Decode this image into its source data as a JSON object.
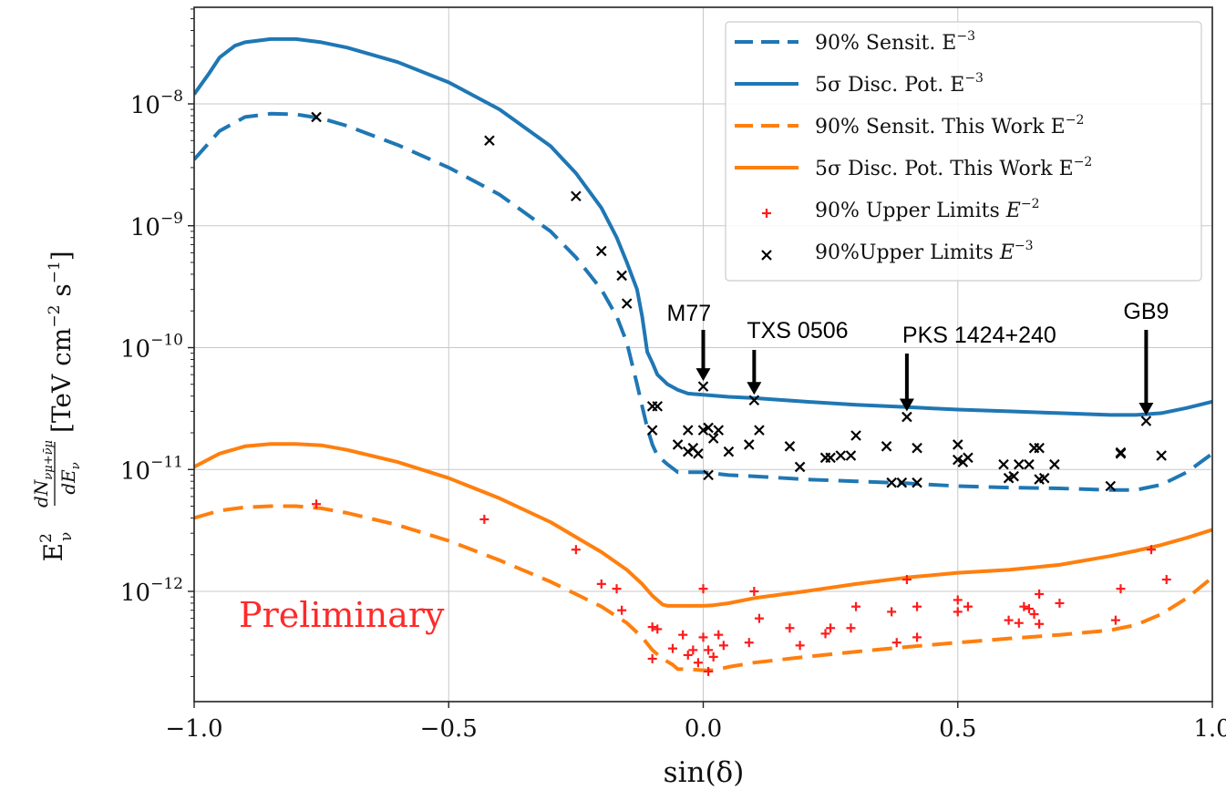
{
  "chart_data": {
    "type": "line",
    "title": "",
    "xlabel": "sin(δ)",
    "ylabel_main": "[TeV cm",
    "ylabel_parts": [
      "E",
      "2",
      "ν",
      "dN",
      "νμ+ν̄μ",
      "dE",
      "ν",
      "[TeV cm",
      "−2",
      " s",
      "−1",
      "]"
    ],
    "xlim": [
      -1.0,
      1.0
    ],
    "ylim": [
      2e-13,
      1e-07
    ],
    "yscale": "log",
    "grid": true,
    "legend_position": "top-right",
    "x_ticks": [
      "−1.0",
      "−0.5",
      "0.0",
      "0.5",
      "1.0"
    ],
    "x_tick_values": [
      -1.0,
      -0.5,
      0.0,
      0.5,
      1.0
    ],
    "y_tick_values": [
      1e-12,
      1e-11,
      1e-10,
      1e-09,
      1e-08
    ],
    "y_tick_bases": [
      "10",
      "10",
      "10",
      "10",
      "10"
    ],
    "y_tick_exps": [
      "−12",
      "−11",
      "−10",
      "−9",
      "−8"
    ],
    "watermark": "Preliminary",
    "colors": {
      "blue": "#1f77b4",
      "orange": "#ff7f0e",
      "red": "#ff1a1a",
      "black": "#000000"
    },
    "series": [
      {
        "name": "90% Sensit. E",
        "sup": "−3",
        "style": "dashed",
        "color": "#1f77b4",
        "x": [
          -1.0,
          -0.95,
          -0.9,
          -0.85,
          -0.8,
          -0.75,
          -0.7,
          -0.6,
          -0.5,
          -0.4,
          -0.3,
          -0.25,
          -0.2,
          -0.17,
          -0.15,
          -0.13,
          -0.12,
          -0.11,
          -0.1,
          -0.09,
          -0.07,
          -0.05,
          -0.03,
          -0.01,
          0.0,
          0.05,
          0.1,
          0.2,
          0.3,
          0.4,
          0.5,
          0.6,
          0.7,
          0.8,
          0.85,
          0.9,
          0.95,
          1.0
        ],
        "y": [
          3.5e-09,
          6e-09,
          7.8e-09,
          8.3e-09,
          8.2e-09,
          7.6e-09,
          6.6e-09,
          4.6e-09,
          3e-09,
          1.8e-09,
          9e-10,
          5.5e-10,
          3e-10,
          1.8e-10,
          1.1e-10,
          5e-11,
          3.3e-11,
          2.2e-11,
          1.6e-11,
          1.3e-11,
          1.1e-11,
          9.5e-12,
          9.5e-12,
          9.5e-12,
          9.5e-12,
          9e-12,
          8.8e-12,
          8.3e-12,
          8e-12,
          7.7e-12,
          7.3e-12,
          7.1e-12,
          7e-12,
          6.8e-12,
          6.8e-12,
          7.5e-12,
          9.5e-12,
          1.35e-11
        ]
      },
      {
        "name": "5σ Disc. Pot. E",
        "sup": "−3",
        "style": "solid",
        "color": "#1f77b4",
        "x": [
          -1.0,
          -0.97,
          -0.95,
          -0.92,
          -0.9,
          -0.85,
          -0.8,
          -0.75,
          -0.7,
          -0.6,
          -0.5,
          -0.4,
          -0.3,
          -0.25,
          -0.2,
          -0.17,
          -0.15,
          -0.13,
          -0.12,
          -0.11,
          -0.1,
          -0.09,
          -0.07,
          -0.05,
          -0.03,
          0.0,
          0.05,
          0.1,
          0.2,
          0.3,
          0.4,
          0.5,
          0.6,
          0.7,
          0.8,
          0.85,
          0.9,
          0.95,
          1.0
        ],
        "y": [
          1.2e-08,
          1.8e-08,
          2.4e-08,
          3e-08,
          3.2e-08,
          3.4e-08,
          3.4e-08,
          3.2e-08,
          2.9e-08,
          2.2e-08,
          1.5e-08,
          9e-09,
          4.5e-09,
          2.7e-09,
          1.4e-09,
          8e-10,
          5e-10,
          3e-10,
          1.8e-10,
          9.2e-11,
          7.5e-11,
          6e-11,
          5e-11,
          4.5e-11,
          4.2e-11,
          4.1e-11,
          3.95e-11,
          3.85e-11,
          3.6e-11,
          3.4e-11,
          3.25e-11,
          3.1e-11,
          3e-11,
          2.9e-11,
          2.8e-11,
          2.8e-11,
          2.9e-11,
          3.2e-11,
          3.6e-11
        ]
      },
      {
        "name": "90% Sensit. This Work E",
        "sup": "−2",
        "style": "dashed",
        "color": "#ff7f0e",
        "x": [
          -1.0,
          -0.95,
          -0.9,
          -0.85,
          -0.8,
          -0.75,
          -0.7,
          -0.6,
          -0.5,
          -0.4,
          -0.3,
          -0.2,
          -0.15,
          -0.12,
          -0.1,
          -0.08,
          -0.06,
          -0.05,
          -0.03,
          0.0,
          0.02,
          0.05,
          0.1,
          0.2,
          0.3,
          0.4,
          0.5,
          0.6,
          0.7,
          0.8,
          0.85,
          0.9,
          0.95,
          1.0
        ],
        "y": [
          4e-12,
          4.6e-12,
          4.9e-12,
          5e-12,
          5e-12,
          4.8e-12,
          4.4e-12,
          3.5e-12,
          2.6e-12,
          1.8e-12,
          1.2e-12,
          7.5e-13,
          5.5e-13,
          4.2e-13,
          3.3e-13,
          2.8e-13,
          2.5e-13,
          2.3e-13,
          2.3e-13,
          2.25e-13,
          2.25e-13,
          2.4e-13,
          2.6e-13,
          2.9e-13,
          3.2e-13,
          3.5e-13,
          3.8e-13,
          4.1e-13,
          4.4e-13,
          4.8e-13,
          5.3e-13,
          6.5e-13,
          8.8e-13,
          1.3e-12
        ]
      },
      {
        "name": "5σ Disc. Pot. This Work E",
        "sup": "−2",
        "style": "solid",
        "color": "#ff7f0e",
        "x": [
          -1.0,
          -0.95,
          -0.9,
          -0.85,
          -0.8,
          -0.75,
          -0.7,
          -0.6,
          -0.5,
          -0.4,
          -0.3,
          -0.2,
          -0.15,
          -0.12,
          -0.1,
          -0.08,
          -0.07,
          -0.05,
          -0.03,
          0.0,
          0.02,
          0.05,
          0.1,
          0.2,
          0.3,
          0.4,
          0.5,
          0.6,
          0.7,
          0.8,
          0.85,
          0.9,
          0.95,
          1.0
        ],
        "y": [
          1.05e-11,
          1.35e-11,
          1.55e-11,
          1.62e-11,
          1.62e-11,
          1.58e-11,
          1.45e-11,
          1.15e-11,
          8.5e-12,
          5.8e-12,
          3.7e-12,
          2.1e-12,
          1.5e-12,
          1.15e-12,
          9.2e-13,
          7.8e-13,
          7.6e-13,
          7.6e-13,
          7.6e-13,
          7.6e-13,
          7.7e-13,
          8e-13,
          8.8e-13,
          1e-12,
          1.15e-12,
          1.3e-12,
          1.42e-12,
          1.5e-12,
          1.65e-12,
          1.95e-12,
          2.15e-12,
          2.4e-12,
          2.75e-12,
          3.2e-12
        ]
      }
    ],
    "scatter": [
      {
        "name": "90% Upper Limits ",
        "name_italic": "E",
        "sup": "−2",
        "marker": "plus",
        "color": "#ff1a1a",
        "points": [
          [
            -0.76,
            5.2e-12
          ],
          [
            -0.43,
            3.9e-12
          ],
          [
            -0.25,
            2.2e-12
          ],
          [
            -0.2,
            1.15e-12
          ],
          [
            -0.17,
            1.05e-12
          ],
          [
            -0.16,
            7e-13
          ],
          [
            -0.1,
            5.1e-13
          ],
          [
            -0.09,
            4.9e-13
          ],
          [
            -0.1,
            2.8e-13
          ],
          [
            -0.06,
            3.4e-13
          ],
          [
            -0.04,
            4.4e-13
          ],
          [
            -0.03,
            3e-13
          ],
          [
            -0.02,
            3.3e-13
          ],
          [
            -0.01,
            2.6e-13
          ],
          [
            0.0,
            1.05e-12
          ],
          [
            0.0,
            4.2e-13
          ],
          [
            0.01,
            3.3e-13
          ],
          [
            0.01,
            2.2e-13
          ],
          [
            0.03,
            4.4e-13
          ],
          [
            0.04,
            3.6e-13
          ],
          [
            0.02,
            2.9e-13
          ],
          [
            0.09,
            3.8e-13
          ],
          [
            0.1,
            1e-12
          ],
          [
            0.11,
            6e-13
          ],
          [
            0.17,
            5e-13
          ],
          [
            0.19,
            3.6e-13
          ],
          [
            0.24,
            4.5e-13
          ],
          [
            0.25,
            5e-13
          ],
          [
            0.29,
            5e-13
          ],
          [
            0.3,
            7.5e-13
          ],
          [
            0.37,
            6.8e-13
          ],
          [
            0.38,
            3.8e-13
          ],
          [
            0.4,
            1.25e-12
          ],
          [
            0.42,
            7.5e-13
          ],
          [
            0.42,
            4.2e-13
          ],
          [
            0.5,
            8.5e-13
          ],
          [
            0.5,
            6.8e-13
          ],
          [
            0.52,
            7.5e-13
          ],
          [
            0.6,
            5.8e-13
          ],
          [
            0.62,
            5.5e-13
          ],
          [
            0.63,
            7.5e-13
          ],
          [
            0.64,
            7.2e-13
          ],
          [
            0.65,
            6.5e-13
          ],
          [
            0.66,
            5.4e-13
          ],
          [
            0.66,
            9.5e-13
          ],
          [
            0.7,
            8e-13
          ],
          [
            0.81,
            5.8e-13
          ],
          [
            0.82,
            1.05e-12
          ],
          [
            0.88,
            2.2e-12
          ],
          [
            0.91,
            1.25e-12
          ]
        ]
      },
      {
        "name": "90%Upper Limits ",
        "name_italic": "E",
        "sup": "−3",
        "marker": "x",
        "color": "#000000",
        "points": [
          [
            -0.76,
            7.8e-09
          ],
          [
            -0.42,
            5e-09
          ],
          [
            -0.25,
            1.75e-09
          ],
          [
            -0.2,
            6.2e-10
          ],
          [
            -0.16,
            3.9e-10
          ],
          [
            -0.15,
            2.3e-10
          ],
          [
            -0.1,
            3.3e-11
          ],
          [
            -0.09,
            3.3e-11
          ],
          [
            -0.1,
            2.1e-11
          ],
          [
            -0.05,
            1.6e-11
          ],
          [
            -0.03,
            2.1e-11
          ],
          [
            -0.03,
            1.4e-11
          ],
          [
            -0.02,
            1.5e-11
          ],
          [
            -0.01,
            1.35e-11
          ],
          [
            0.0,
            4.8e-11
          ],
          [
            0.0,
            2.1e-11
          ],
          [
            0.01,
            2.2e-11
          ],
          [
            0.01,
            9e-12
          ],
          [
            0.02,
            1.8e-11
          ],
          [
            0.03,
            2.1e-11
          ],
          [
            0.05,
            1.4e-11
          ],
          [
            0.09,
            1.6e-11
          ],
          [
            0.1,
            3.7e-11
          ],
          [
            0.11,
            2.1e-11
          ],
          [
            0.17,
            1.55e-11
          ],
          [
            0.19,
            1.05e-11
          ],
          [
            0.24,
            1.25e-11
          ],
          [
            0.25,
            1.25e-11
          ],
          [
            0.27,
            1.3e-11
          ],
          [
            0.29,
            1.3e-11
          ],
          [
            0.3,
            1.9e-11
          ],
          [
            0.36,
            1.55e-11
          ],
          [
            0.37,
            7.8e-12
          ],
          [
            0.39,
            7.8e-12
          ],
          [
            0.4,
            2.7e-11
          ],
          [
            0.42,
            1.5e-11
          ],
          [
            0.42,
            7.8e-12
          ],
          [
            0.5,
            1.6e-11
          ],
          [
            0.5,
            1.2e-11
          ],
          [
            0.51,
            1.15e-11
          ],
          [
            0.52,
            1.25e-11
          ],
          [
            0.59,
            1.1e-11
          ],
          [
            0.6,
            8.5e-12
          ],
          [
            0.61,
            8.8e-12
          ],
          [
            0.62,
            1.1e-11
          ],
          [
            0.64,
            1.1e-11
          ],
          [
            0.65,
            1.5e-11
          ],
          [
            0.66,
            1.5e-11
          ],
          [
            0.66,
            8.3e-12
          ],
          [
            0.67,
            8.5e-12
          ],
          [
            0.69,
            1.1e-11
          ],
          [
            0.8,
            7.3e-12
          ],
          [
            0.82,
            1.35e-11
          ],
          [
            0.82,
            1.38e-11
          ],
          [
            0.87,
            2.5e-11
          ],
          [
            0.9,
            1.3e-11
          ]
        ]
      }
    ],
    "annotations": [
      {
        "text": "M77",
        "x": 0.0,
        "y": 4.8e-11
      },
      {
        "text": "TXS 0506",
        "x": 0.1,
        "y": 3.7e-11
      },
      {
        "text": "PKS 1424+240",
        "x": 0.4,
        "y": 2.7e-11
      },
      {
        "text": "GB9",
        "x": 0.87,
        "y": 2.5e-11
      }
    ]
  }
}
